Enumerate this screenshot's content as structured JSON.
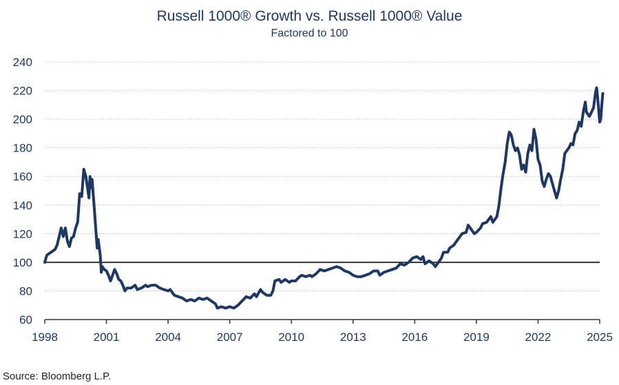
{
  "chart_data": {
    "type": "line",
    "title": "Russell 1000® Growth vs. Russell 1000® Value",
    "subtitle": "Factored to 100",
    "xlabel": "",
    "ylabel": "",
    "xlim": [
      1998,
      2025
    ],
    "ylim": [
      60,
      240
    ],
    "x_ticks": [
      1998,
      2001,
      2004,
      2007,
      2010,
      2013,
      2016,
      2019,
      2022,
      2025
    ],
    "y_ticks": [
      60,
      80,
      100,
      120,
      140,
      160,
      180,
      200,
      220,
      240
    ],
    "y_tick_labels": [
      "60",
      "80",
      "100",
      "120",
      "140",
      "160",
      "180",
      "200",
      "220",
      "240"
    ],
    "x_tick_labels": [
      "1998",
      "2001",
      "2004",
      "2007",
      "2010",
      "2013",
      "2016",
      "2019",
      "2022",
      "2025"
    ],
    "reference_line": 100,
    "grid": "horizontal",
    "line_color": "#1d3767",
    "series": [
      {
        "name": "Russell 1000 Growth vs. Russell 1000 Value",
        "points": [
          [
            1998.0,
            100
          ],
          [
            1998.1,
            105
          ],
          [
            1998.3,
            107
          ],
          [
            1998.5,
            109
          ],
          [
            1998.6,
            112
          ],
          [
            1998.8,
            124
          ],
          [
            1998.9,
            118
          ],
          [
            1999.0,
            124
          ],
          [
            1999.1,
            115
          ],
          [
            1999.2,
            111
          ],
          [
            1999.3,
            117
          ],
          [
            1999.4,
            118
          ],
          [
            1999.5,
            124
          ],
          [
            1999.6,
            128
          ],
          [
            1999.7,
            148
          ],
          [
            1999.8,
            146
          ],
          [
            1999.9,
            165
          ],
          [
            2000.0,
            160
          ],
          [
            2000.1,
            150
          ],
          [
            2000.15,
            145
          ],
          [
            2000.2,
            160
          ],
          [
            2000.25,
            152
          ],
          [
            2000.3,
            158
          ],
          [
            2000.4,
            140
          ],
          [
            2000.5,
            120
          ],
          [
            2000.55,
            110
          ],
          [
            2000.6,
            116
          ],
          [
            2000.7,
            105
          ],
          [
            2000.75,
            93
          ],
          [
            2000.8,
            97
          ],
          [
            2000.9,
            95
          ],
          [
            2001.0,
            94
          ],
          [
            2001.1,
            91
          ],
          [
            2001.2,
            87
          ],
          [
            2001.3,
            91
          ],
          [
            2001.4,
            95
          ],
          [
            2001.5,
            92
          ],
          [
            2001.6,
            88
          ],
          [
            2001.7,
            87
          ],
          [
            2001.8,
            84
          ],
          [
            2001.9,
            80
          ],
          [
            2002.0,
            82
          ],
          [
            2002.2,
            82
          ],
          [
            2002.4,
            84
          ],
          [
            2002.5,
            81
          ],
          [
            2002.7,
            82
          ],
          [
            2002.9,
            84
          ],
          [
            2003.0,
            83
          ],
          [
            2003.2,
            84
          ],
          [
            2003.4,
            84
          ],
          [
            2003.6,
            82
          ],
          [
            2003.8,
            81
          ],
          [
            2004.0,
            80
          ],
          [
            2004.1,
            81
          ],
          [
            2004.3,
            77
          ],
          [
            2004.5,
            76
          ],
          [
            2004.7,
            75
          ],
          [
            2004.9,
            73
          ],
          [
            2005.1,
            74
          ],
          [
            2005.3,
            73
          ],
          [
            2005.5,
            75
          ],
          [
            2005.7,
            74
          ],
          [
            2005.9,
            75
          ],
          [
            2006.1,
            73
          ],
          [
            2006.3,
            71
          ],
          [
            2006.4,
            68
          ],
          [
            2006.6,
            69
          ],
          [
            2006.8,
            68
          ],
          [
            2007.0,
            69
          ],
          [
            2007.2,
            68
          ],
          [
            2007.4,
            70
          ],
          [
            2007.6,
            73
          ],
          [
            2007.8,
            76
          ],
          [
            2008.0,
            75
          ],
          [
            2008.2,
            78
          ],
          [
            2008.3,
            76
          ],
          [
            2008.5,
            81
          ],
          [
            2008.6,
            79
          ],
          [
            2008.8,
            77
          ],
          [
            2009.0,
            77
          ],
          [
            2009.1,
            80
          ],
          [
            2009.2,
            87
          ],
          [
            2009.4,
            88
          ],
          [
            2009.5,
            86
          ],
          [
            2009.7,
            88
          ],
          [
            2009.9,
            86
          ],
          [
            2010.0,
            87
          ],
          [
            2010.2,
            87
          ],
          [
            2010.4,
            90
          ],
          [
            2010.5,
            91
          ],
          [
            2010.7,
            90
          ],
          [
            2010.9,
            91
          ],
          [
            2011.0,
            90
          ],
          [
            2011.2,
            92
          ],
          [
            2011.4,
            95
          ],
          [
            2011.6,
            94
          ],
          [
            2011.8,
            95
          ],
          [
            2012.0,
            96
          ],
          [
            2012.2,
            97
          ],
          [
            2012.4,
            96
          ],
          [
            2012.6,
            94
          ],
          [
            2012.8,
            93
          ],
          [
            2013.0,
            91
          ],
          [
            2013.2,
            90
          ],
          [
            2013.4,
            90
          ],
          [
            2013.6,
            91
          ],
          [
            2013.8,
            92
          ],
          [
            2014.0,
            94
          ],
          [
            2014.2,
            94
          ],
          [
            2014.3,
            91
          ],
          [
            2014.5,
            93
          ],
          [
            2014.7,
            94
          ],
          [
            2014.9,
            95
          ],
          [
            2015.1,
            96
          ],
          [
            2015.3,
            99
          ],
          [
            2015.5,
            98
          ],
          [
            2015.7,
            100
          ],
          [
            2015.9,
            103
          ],
          [
            2016.1,
            104
          ],
          [
            2016.3,
            102
          ],
          [
            2016.4,
            104
          ],
          [
            2016.5,
            99
          ],
          [
            2016.7,
            101
          ],
          [
            2016.9,
            99
          ],
          [
            2017.0,
            97
          ],
          [
            2017.2,
            101
          ],
          [
            2017.3,
            103
          ],
          [
            2017.4,
            107
          ],
          [
            2017.6,
            107
          ],
          [
            2017.7,
            110
          ],
          [
            2017.9,
            112
          ],
          [
            2018.0,
            114
          ],
          [
            2018.2,
            118
          ],
          [
            2018.3,
            120
          ],
          [
            2018.5,
            121
          ],
          [
            2018.6,
            126
          ],
          [
            2018.8,
            122
          ],
          [
            2018.9,
            120
          ],
          [
            2019.0,
            121
          ],
          [
            2019.2,
            124
          ],
          [
            2019.3,
            127
          ],
          [
            2019.5,
            128
          ],
          [
            2019.7,
            132
          ],
          [
            2019.8,
            128
          ],
          [
            2020.0,
            132
          ],
          [
            2020.1,
            140
          ],
          [
            2020.2,
            152
          ],
          [
            2020.3,
            162
          ],
          [
            2020.4,
            170
          ],
          [
            2020.5,
            183
          ],
          [
            2020.6,
            191
          ],
          [
            2020.7,
            189
          ],
          [
            2020.8,
            182
          ],
          [
            2020.9,
            178
          ],
          [
            2021.0,
            180
          ],
          [
            2021.1,
            175
          ],
          [
            2021.2,
            165
          ],
          [
            2021.3,
            168
          ],
          [
            2021.4,
            163
          ],
          [
            2021.5,
            176
          ],
          [
            2021.6,
            182
          ],
          [
            2021.7,
            178
          ],
          [
            2021.8,
            193
          ],
          [
            2021.9,
            186
          ],
          [
            2022.0,
            172
          ],
          [
            2022.1,
            168
          ],
          [
            2022.2,
            157
          ],
          [
            2022.3,
            153
          ],
          [
            2022.4,
            158
          ],
          [
            2022.5,
            162
          ],
          [
            2022.6,
            160
          ],
          [
            2022.7,
            155
          ],
          [
            2022.8,
            150
          ],
          [
            2022.9,
            145
          ],
          [
            2023.0,
            150
          ],
          [
            2023.1,
            158
          ],
          [
            2023.2,
            165
          ],
          [
            2023.3,
            176
          ],
          [
            2023.4,
            178
          ],
          [
            2023.5,
            180
          ],
          [
            2023.6,
            183
          ],
          [
            2023.7,
            182
          ],
          [
            2023.8,
            190
          ],
          [
            2023.9,
            192
          ],
          [
            2024.0,
            198
          ],
          [
            2024.1,
            195
          ],
          [
            2024.2,
            205
          ],
          [
            2024.3,
            212
          ],
          [
            2024.35,
            205
          ],
          [
            2024.5,
            202
          ],
          [
            2024.6,
            205
          ],
          [
            2024.7,
            208
          ],
          [
            2024.8,
            219
          ],
          [
            2024.85,
            222
          ],
          [
            2024.9,
            215
          ],
          [
            2025.0,
            198
          ],
          [
            2025.05,
            200
          ],
          [
            2025.1,
            210
          ],
          [
            2025.15,
            218
          ]
        ]
      }
    ]
  },
  "source": "Source: Bloomberg L.P."
}
